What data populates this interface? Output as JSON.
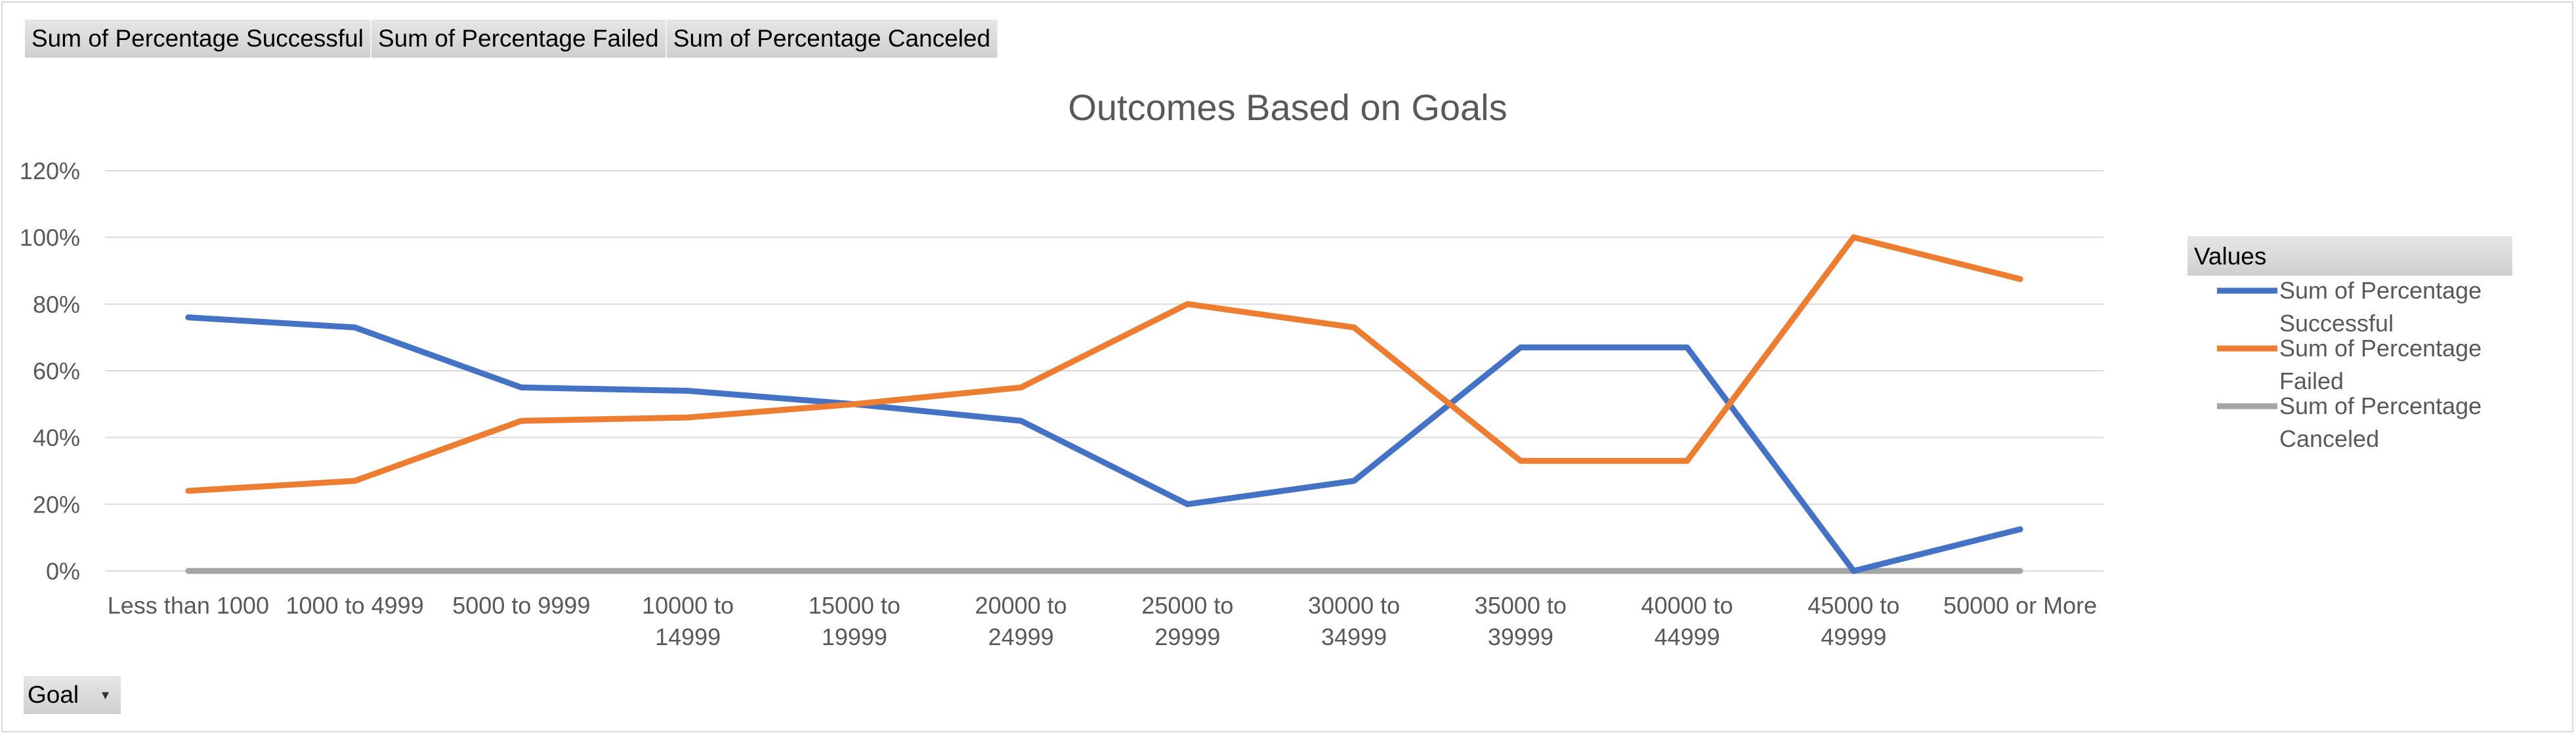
{
  "pivot": {
    "field_buttons": [
      "Sum of Percentage  Successful",
      "Sum of Percentage  Failed",
      "Sum of Percentage  Canceled"
    ],
    "axis_field": "Goal",
    "legend_title": "Values"
  },
  "chart_data": {
    "type": "line",
    "title": "Outcomes Based on Goals",
    "categories": [
      [
        "Less than 1000"
      ],
      [
        "1000 to 4999"
      ],
      [
        "5000 to 9999"
      ],
      [
        "10000 to",
        "14999"
      ],
      [
        "15000 to",
        "19999"
      ],
      [
        "20000 to",
        "24999"
      ],
      [
        "25000 to",
        "29999"
      ],
      [
        "30000 to",
        "34999"
      ],
      [
        "35000 to",
        "39999"
      ],
      [
        "40000 to",
        "44999"
      ],
      [
        "45000 to",
        "49999"
      ],
      [
        "50000 or More"
      ]
    ],
    "ylim": [
      0,
      1.2
    ],
    "yticks": [
      "0%",
      "20%",
      "40%",
      "60%",
      "80%",
      "100%",
      "120%"
    ],
    "grid": true,
    "legend_position": "right",
    "series": [
      {
        "name": [
          "Sum of Percentage",
          "Successful"
        ],
        "color": "#4472c4",
        "values": [
          0.76,
          0.73,
          0.55,
          0.54,
          0.5,
          0.45,
          0.2,
          0.27,
          0.67,
          0.67,
          0.0,
          0.125
        ]
      },
      {
        "name": [
          "Sum of Percentage",
          "Failed"
        ],
        "color": "#ed7d31",
        "values": [
          0.24,
          0.27,
          0.45,
          0.46,
          0.5,
          0.55,
          0.8,
          0.73,
          0.33,
          0.33,
          1.0,
          0.875
        ]
      },
      {
        "name": [
          "Sum of Percentage",
          "Canceled"
        ],
        "color": "#a5a5a5",
        "values": [
          0,
          0,
          0,
          0,
          0,
          0,
          0,
          0,
          0,
          0,
          0,
          0
        ]
      }
    ]
  }
}
